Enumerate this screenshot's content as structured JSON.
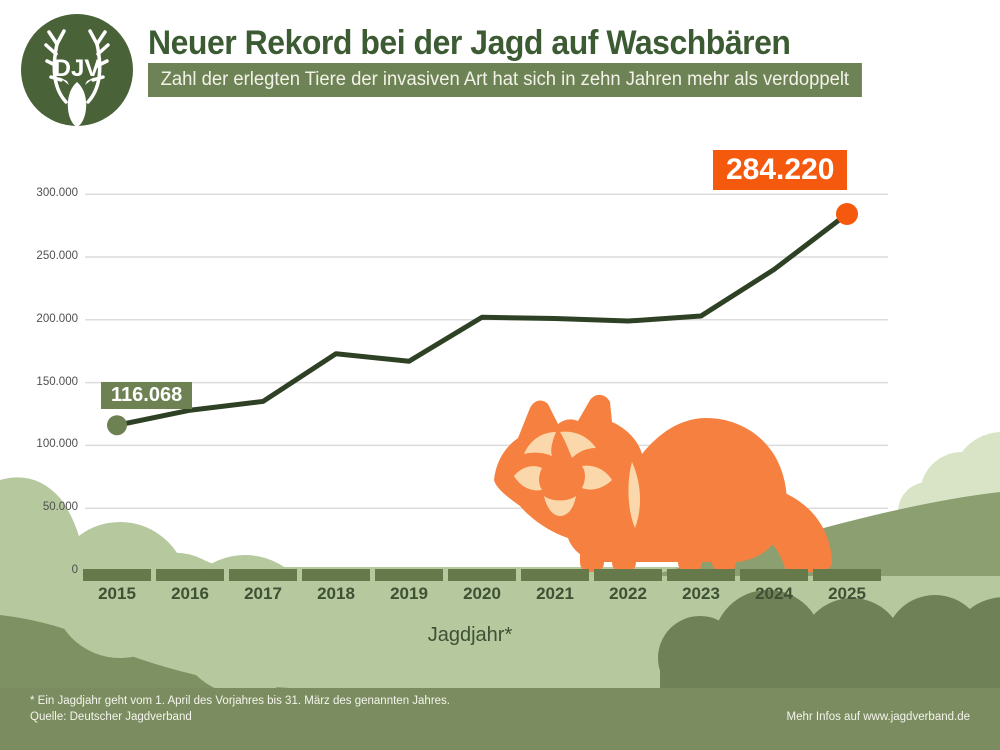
{
  "header": {
    "logo_text": "DJV",
    "title": "Neuer Rekord bei der Jagd auf Waschbären",
    "subtitle": "Zahl der erlegten Tiere der invasiven Art hat sich in zehn Jahren mehr als verdoppelt"
  },
  "chart_data": {
    "type": "line",
    "title": "Neuer Rekord bei der Jagd auf Waschbären",
    "categories": [
      "2015",
      "2016",
      "2017",
      "2018",
      "2019",
      "2020",
      "2021",
      "2022",
      "2023",
      "2024",
      "2025"
    ],
    "values": [
      116068,
      128000,
      135000,
      173000,
      167000,
      202000,
      201000,
      199000,
      203000,
      240000,
      284220
    ],
    "start_label": "116.068",
    "end_label": "284.220",
    "xlabel": "Jagdjahr*",
    "ylim": [
      0,
      300000
    ],
    "yticks": [
      0,
      50000,
      100000,
      150000,
      200000,
      250000,
      300000
    ],
    "ytick_labels": [
      "0",
      "50.000",
      "100.000",
      "150.000",
      "200.000",
      "250.000",
      "300.000"
    ],
    "grid": true,
    "legend": "none"
  },
  "colors": {
    "title_green": "#3C5B33",
    "dark_line": "#2E4125",
    "sage": "#6E8152",
    "axis_bar": "#66794B",
    "light_meadow": "#B5C89E",
    "medium_hill": "#8B9F70",
    "pale_bush": "#D9E4C7",
    "dark_bush_left": "#7D9162",
    "dark_bush_right": "#6F8257",
    "footer_band": "#7A8C60",
    "accent_orange": "#F4590E",
    "raccoon_orange": "#F6803F",
    "raccoon_cream": "#FBD8AC",
    "gridline": "#DCDCDC"
  },
  "footer": {
    "note_line1": "* Ein Jagdjahr geht vom 1. April des Vorjahres bis 31. März des genannten Jahres.",
    "note_line2": "Quelle: Deutscher Jagdverband",
    "info": "Mehr Infos auf www.jagdverband.de"
  }
}
